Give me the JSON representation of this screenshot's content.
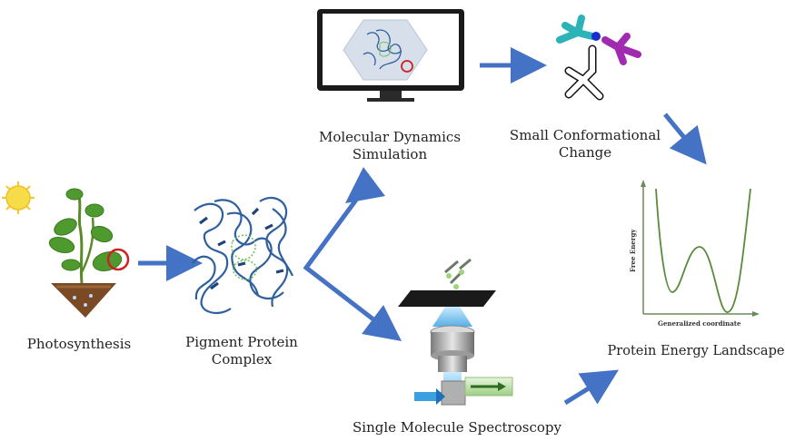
{
  "labels": {
    "photosynthesis": "Photosynthesis",
    "pigment_protein_line1": "Pigment Protein",
    "pigment_protein_line2": "Complex",
    "md_sim_line1": "Molecular Dynamics",
    "md_sim_line2": "Simulation",
    "small_conf_line1": "Small Conformational",
    "small_conf_line2": "Change",
    "sms": "Single Molecule Spectroscopy",
    "energy_landscape": "Protein Energy Landscape"
  },
  "energy_plot": {
    "ylabel": "Free Energy",
    "xlabel": "Generalized coordinate"
  },
  "colors": {
    "arrow": "#4472c4",
    "curve": "#5a8a3c",
    "protein": "#2f5f9e",
    "highlight": "#cc2222",
    "plant_leaf": "#4f9a2e",
    "soil": "#7a4a24",
    "sun": "#f3d23a"
  },
  "icons": [
    "sun-icon",
    "plant-icon",
    "protein-complex-icon",
    "monitor-icon",
    "molecule-icon",
    "microscope-icon"
  ]
}
